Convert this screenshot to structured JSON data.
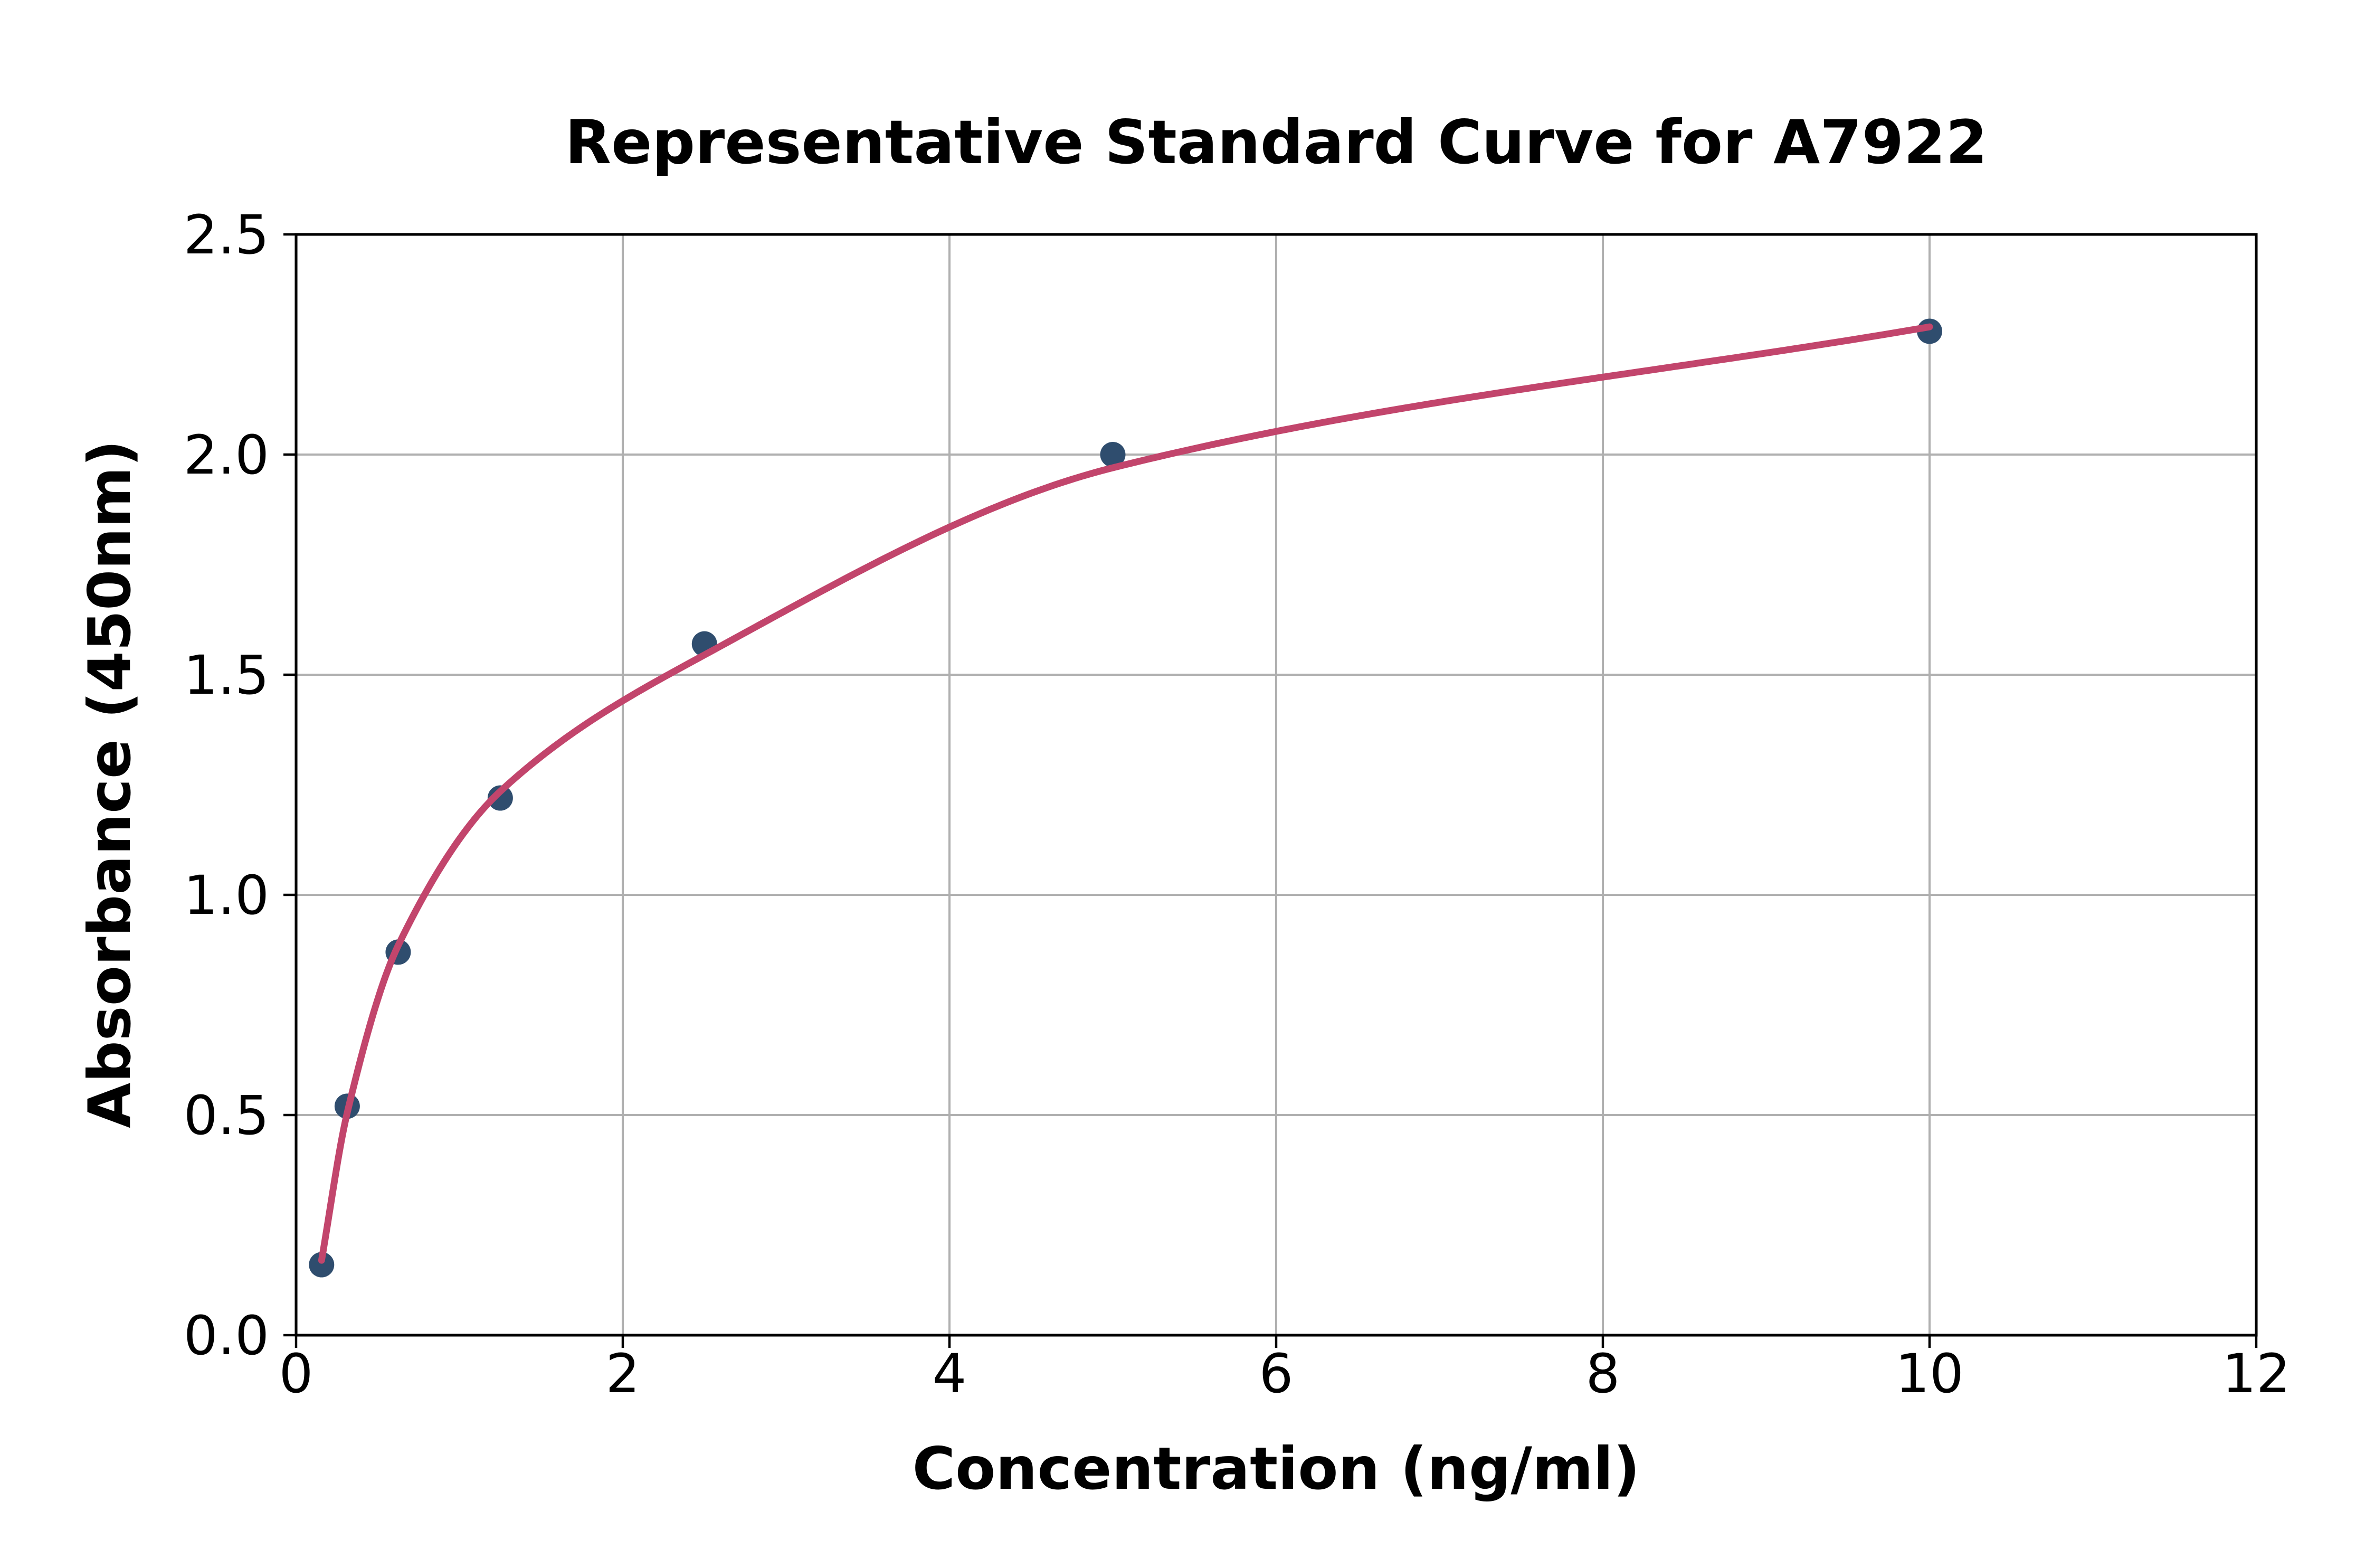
{
  "figure": {
    "background": "#ffffff"
  },
  "chart_data": {
    "type": "scatter",
    "title": "Representative Standard Curve for A7922",
    "xlabel": "Concentration (ng/ml)",
    "ylabel": "Absorbance (450nm)",
    "xlim": [
      0,
      12
    ],
    "ylim": [
      0,
      2.5
    ],
    "grid": true,
    "legend": null,
    "xticks": [
      {
        "v": 0,
        "label": "0"
      },
      {
        "v": 2,
        "label": "2"
      },
      {
        "v": 4,
        "label": "4"
      },
      {
        "v": 6,
        "label": "6"
      },
      {
        "v": 8,
        "label": "8"
      },
      {
        "v": 10,
        "label": "10"
      },
      {
        "v": 12,
        "label": "12"
      }
    ],
    "yticks": [
      {
        "v": 0.0,
        "label": "0.0"
      },
      {
        "v": 0.5,
        "label": "0.5"
      },
      {
        "v": 1.0,
        "label": "1.0"
      },
      {
        "v": 1.5,
        "label": "1.5"
      },
      {
        "v": 2.0,
        "label": "2.0"
      },
      {
        "v": 2.5,
        "label": "2.5"
      }
    ],
    "series": [
      {
        "name": "standard-points",
        "type": "scatter",
        "color": "#2f4d6e",
        "x": [
          0.156,
          0.313,
          0.625,
          1.25,
          2.5,
          5,
          10
        ],
        "y": [
          0.16,
          0.52,
          0.87,
          1.22,
          1.57,
          2.0,
          2.28
        ]
      },
      {
        "name": "4pl-fit-curve",
        "type": "line",
        "color": "#c2456c",
        "x": [
          0.156,
          0.313,
          0.625,
          1.25,
          2.5,
          5,
          10
        ],
        "y": [
          0.17,
          0.505,
          0.885,
          1.235,
          1.545,
          1.97,
          2.29
        ]
      }
    ],
    "colors": {
      "grid": "#b0b0b0",
      "axis": "#000000",
      "text": "#000000",
      "background": "#ffffff"
    }
  }
}
